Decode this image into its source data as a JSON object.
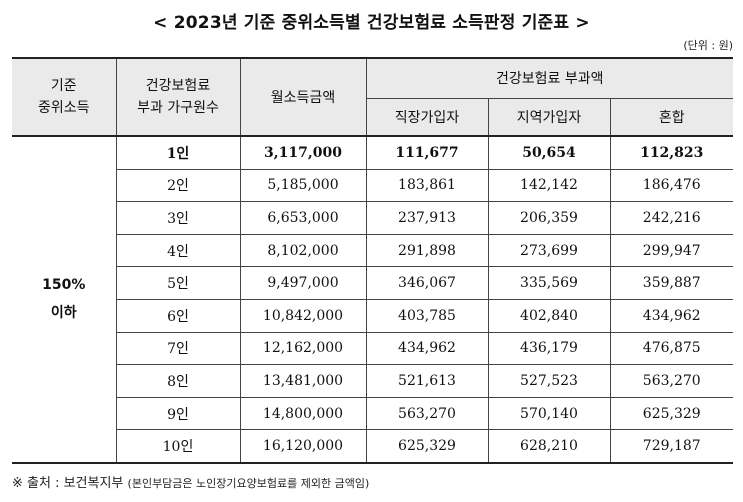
{
  "title": "< 2023년 기준 중위소득별 건강보험료 소득판정 기준표 >",
  "unit": "(단위 : 원)",
  "header": {
    "col1": "기준\n중위소득",
    "col2": "건강보험료\n부과 가구원수",
    "col3": "월소득금액",
    "group": "건강보험료 부과액",
    "sub1": "직장가입자",
    "sub2": "지역가입자",
    "sub3": "혼합"
  },
  "group_label": "150%\n이하",
  "rows": [
    [
      "1인",
      "3,117,000",
      "111,677",
      "50,654",
      "112,823"
    ],
    [
      "2인",
      "5,185,000",
      "183,861",
      "142,142",
      "186,476"
    ],
    [
      "3인",
      "6,653,000",
      "237,913",
      "206,359",
      "242,216"
    ],
    [
      "4인",
      "8,102,000",
      "291,898",
      "273,699",
      "299,947"
    ],
    [
      "5인",
      "9,497,000",
      "346,067",
      "335,569",
      "359,887"
    ],
    [
      "6인",
      "10,842,000",
      "403,785",
      "402,840",
      "434,962"
    ],
    [
      "7인",
      "12,162,000",
      "434,962",
      "436,179",
      "476,875"
    ],
    [
      "8인",
      "13,481,000",
      "521,613",
      "527,523",
      "563,270"
    ],
    [
      "9인",
      "14,800,000",
      "563,270",
      "570,140",
      "625,329"
    ],
    [
      "10인",
      "16,120,000",
      "625,329",
      "628,210",
      "729,187"
    ]
  ],
  "source": {
    "main": "※ 출처 : 보건복지부",
    "note": "(본인부담금은 노인장기요양보험료를 제외한 금액임)"
  }
}
